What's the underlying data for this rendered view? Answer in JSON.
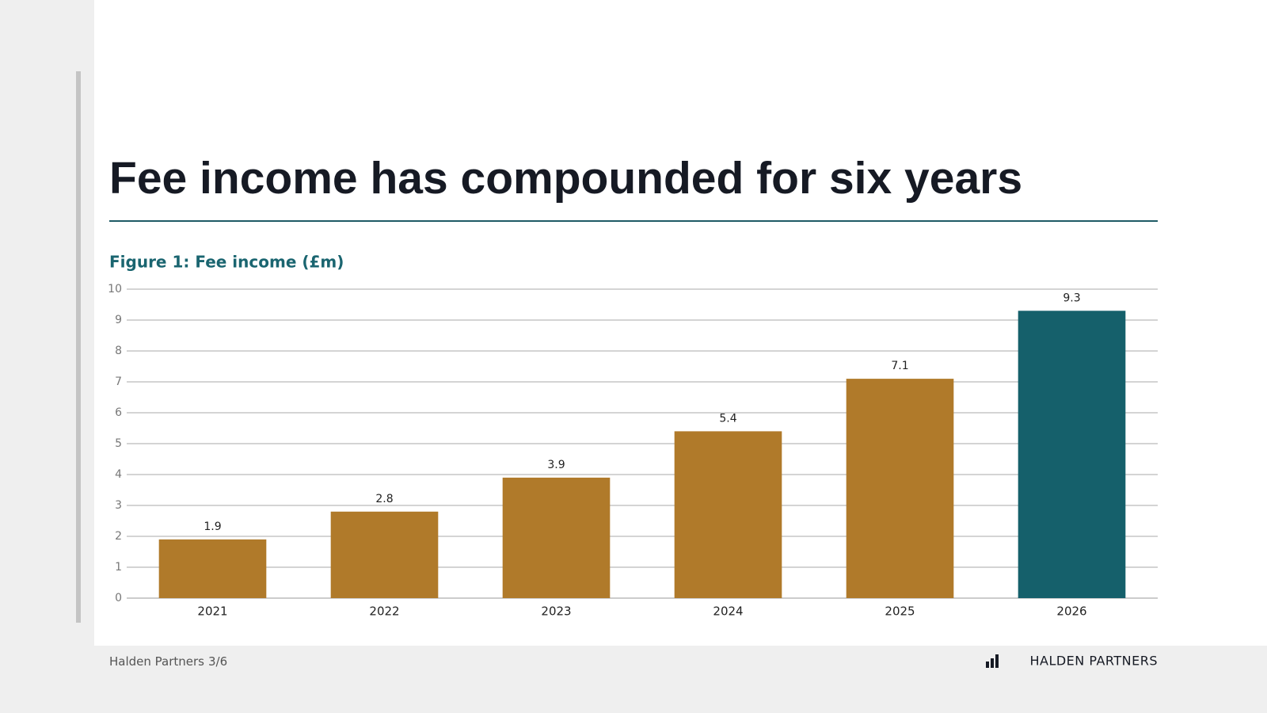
{
  "title": "Fee income has compounded for six years",
  "footer": {
    "company": "Halden Partners",
    "page": "3/6",
    "brand": "HALDEN PARTNERS"
  },
  "chart_data": {
    "type": "bar",
    "title": "Figure 1: Fee income (£m)",
    "categories": [
      "2021",
      "2022",
      "2023",
      "2024",
      "2025",
      "2026"
    ],
    "values": [
      1.9,
      2.8,
      3.9,
      5.4,
      7.1,
      9.3
    ],
    "colors": [
      "#b07a2a",
      "#b07a2a",
      "#b07a2a",
      "#b07a2a",
      "#b07a2a",
      "#15606b"
    ],
    "ylim": [
      0,
      10
    ],
    "yticks": [
      0,
      1,
      2,
      3,
      4,
      5,
      6,
      7,
      8,
      9,
      10
    ],
    "grid": true
  }
}
